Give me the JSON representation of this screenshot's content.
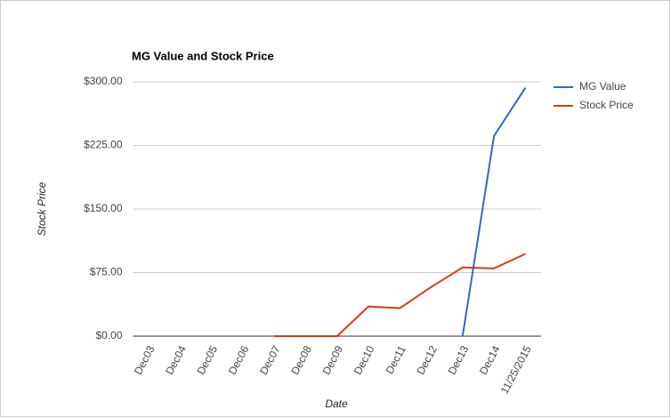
{
  "chart_data": {
    "type": "line",
    "title": "MG Value and Stock Price",
    "x_label": "Date",
    "y_label": "Stock Price",
    "categories": [
      "Dec03",
      "Dec04",
      "Dec05",
      "Dec06",
      "Dec07",
      "Dec08",
      "Dec09",
      "Dec10",
      "Dec11",
      "Dec12",
      "Dec13",
      "Dec14",
      "11/25/2015"
    ],
    "series": [
      {
        "name": "MG Value",
        "color": "#3366cc",
        "values": [
          null,
          null,
          null,
          null,
          null,
          null,
          null,
          null,
          null,
          null,
          0,
          236,
          293
        ]
      },
      {
        "name": "Stock Price",
        "color": "#dc3912",
        "values": [
          null,
          null,
          null,
          null,
          0,
          0,
          0,
          35,
          33,
          58,
          81,
          80,
          97
        ]
      }
    ],
    "ylim": [
      0,
      300
    ],
    "yticks": [
      {
        "value": 0,
        "label": "$0.00"
      },
      {
        "value": 75,
        "label": "$75.00"
      },
      {
        "value": 150,
        "label": "$150.00"
      },
      {
        "value": 225,
        "label": "$225.00"
      },
      {
        "value": 300,
        "label": "$300.00"
      }
    ],
    "grid": true,
    "legend": "right"
  }
}
